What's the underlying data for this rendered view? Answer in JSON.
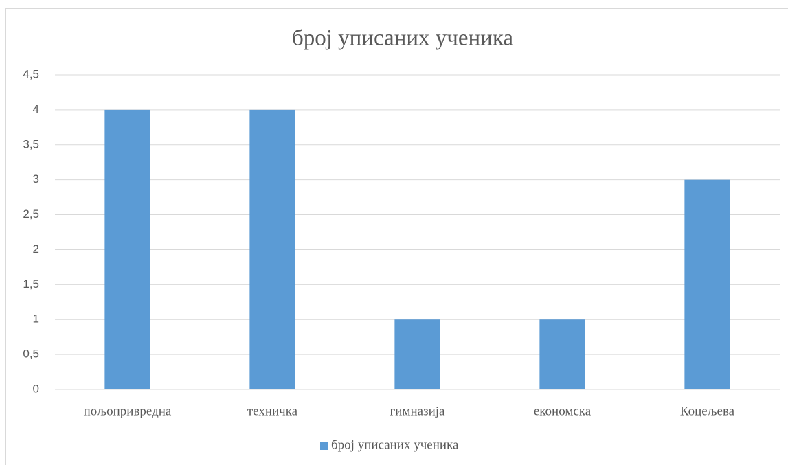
{
  "chart_data": {
    "type": "bar",
    "title": "број уписаних ученика",
    "categories": [
      "пољопривредна",
      "техничка",
      "гимназија",
      "економска",
      "Коцељева"
    ],
    "series": [
      {
        "name": "број уписаних ученика",
        "color": "#5b9bd5",
        "values": [
          4,
          4,
          1,
          1,
          3
        ]
      }
    ],
    "ylim": [
      0,
      4.5
    ],
    "yticks": [
      0,
      {
        "value": 0.5,
        "label": "0,5"
      },
      1,
      {
        "value": 1.5,
        "label": "1,5"
      },
      2,
      {
        "value": 2.5,
        "label": "2,5"
      },
      3,
      {
        "value": 3.5,
        "label": "3,5"
      },
      4,
      {
        "value": 4.5,
        "label": "4,5"
      }
    ],
    "grid": true,
    "legend": "bottom"
  }
}
